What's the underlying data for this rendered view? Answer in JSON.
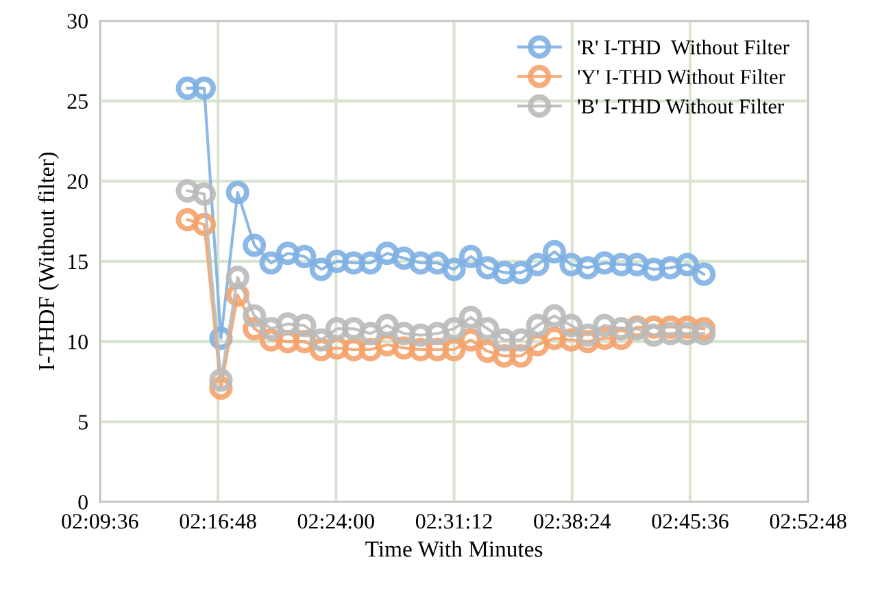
{
  "chart_data": {
    "type": "line",
    "xlabel": "Time With Minutes",
    "ylabel": "I-THDF (Without filter)",
    "x": [
      2.249,
      2.266,
      2.283,
      2.3,
      2.317,
      2.334,
      2.351,
      2.368,
      2.385,
      2.401,
      2.418,
      2.435,
      2.452,
      2.469,
      2.486,
      2.503,
      2.52,
      2.537,
      2.554,
      2.571,
      2.588,
      2.605,
      2.622,
      2.639,
      2.656,
      2.673,
      2.69,
      2.706,
      2.723,
      2.74,
      2.757,
      2.774
    ],
    "series": [
      {
        "name": "'R' I-THD  Without Filter",
        "color": "#7eb0e3",
        "values": [
          25.8,
          25.8,
          10.2,
          19.3,
          16.0,
          14.9,
          15.5,
          15.3,
          14.5,
          15.0,
          14.9,
          14.9,
          15.5,
          15.2,
          14.9,
          14.9,
          14.5,
          15.3,
          14.6,
          14.3,
          14.3,
          14.8,
          15.6,
          14.8,
          14.6,
          14.9,
          14.8,
          14.8,
          14.5,
          14.6,
          14.8,
          14.2
        ]
      },
      {
        "name": "'Y' I-THD Without Filter",
        "color": "#f4a36b",
        "values": [
          17.6,
          17.3,
          7.1,
          12.9,
          10.8,
          10.1,
          10.0,
          10.0,
          9.5,
          9.6,
          9.5,
          9.5,
          9.8,
          9.6,
          9.5,
          9.5,
          9.5,
          10.1,
          9.4,
          9.1,
          9.1,
          9.8,
          10.2,
          10.1,
          10.0,
          10.2,
          10.2,
          10.9,
          10.9,
          10.9,
          10.9,
          10.8
        ]
      },
      {
        "name": "'B' I-THD Without Filter",
        "color": "#bababa",
        "values": [
          19.4,
          19.2,
          7.6,
          14.0,
          11.6,
          10.8,
          11.1,
          11.0,
          10.1,
          10.8,
          10.8,
          10.5,
          11.0,
          10.5,
          10.4,
          10.5,
          10.8,
          11.5,
          10.8,
          10.1,
          10.1,
          11.0,
          11.6,
          11.0,
          10.4,
          11.0,
          10.8,
          10.8,
          10.4,
          10.5,
          10.5,
          10.5
        ]
      }
    ],
    "xlim": [
      2.16,
      2.88
    ],
    "xticks": [
      {
        "value": 2.16,
        "label": "02:09:36"
      },
      {
        "value": 2.28,
        "label": "02:16:48"
      },
      {
        "value": 2.4,
        "label": "02:24:00"
      },
      {
        "value": 2.52,
        "label": "02:31:12"
      },
      {
        "value": 2.64,
        "label": "02:38:24"
      },
      {
        "value": 2.76,
        "label": "02:45:36"
      },
      {
        "value": 2.88,
        "label": "02:52:48"
      }
    ],
    "ylim": [
      0,
      30
    ],
    "yticks": [
      0,
      5,
      10,
      15,
      20,
      25,
      30
    ],
    "grid": true,
    "legend": "top right",
    "marker": "circle",
    "line_style": "solid"
  }
}
